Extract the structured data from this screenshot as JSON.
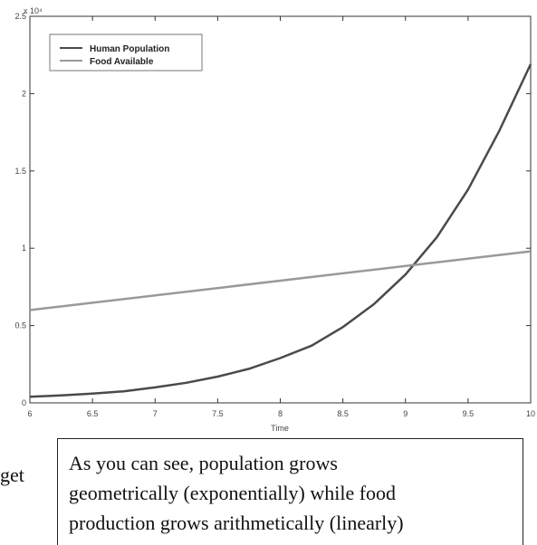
{
  "chart_data": {
    "type": "line",
    "title": "",
    "xlabel": "Time",
    "ylabel": "",
    "y_multiplier_label": "x 10⁴",
    "xlim": [
      6,
      10
    ],
    "ylim": [
      0,
      25000
    ],
    "x_ticks": [
      6,
      6.5,
      7,
      7.5,
      8,
      8.5,
      9,
      9.5,
      10
    ],
    "x_tick_labels": [
      "6",
      "6.5",
      "7",
      "7.5",
      "8",
      "8.5",
      "9",
      "9.5",
      "10"
    ],
    "y_ticks": [
      0,
      5000,
      10000,
      15000,
      20000,
      25000
    ],
    "y_tick_labels": [
      "0",
      "0.5",
      "1",
      "1.5",
      "2",
      "2.5"
    ],
    "grid": false,
    "legend_position": "top-left",
    "series": [
      {
        "name": "Human Population",
        "color": "#4a4a4a",
        "x": [
          6,
          6.25,
          6.5,
          6.75,
          7,
          7.25,
          7.5,
          7.75,
          8,
          8.25,
          8.5,
          8.75,
          9,
          9.25,
          9.5,
          9.75,
          10
        ],
        "y": [
          400,
          480,
          600,
          750,
          1000,
          1300,
          1700,
          2200,
          2900,
          3700,
          4900,
          6400,
          8300,
          10700,
          13800,
          17600,
          21900
        ]
      },
      {
        "name": "Food Available",
        "color": "#999999",
        "x": [
          6,
          10
        ],
        "y": [
          6000,
          9800
        ]
      }
    ]
  },
  "caption": {
    "lines": [
      "As you can see, population grows",
      "geometrically (exponentially) while food",
      "production grows arithmetically (linearly)"
    ]
  },
  "left_fragment": "get"
}
